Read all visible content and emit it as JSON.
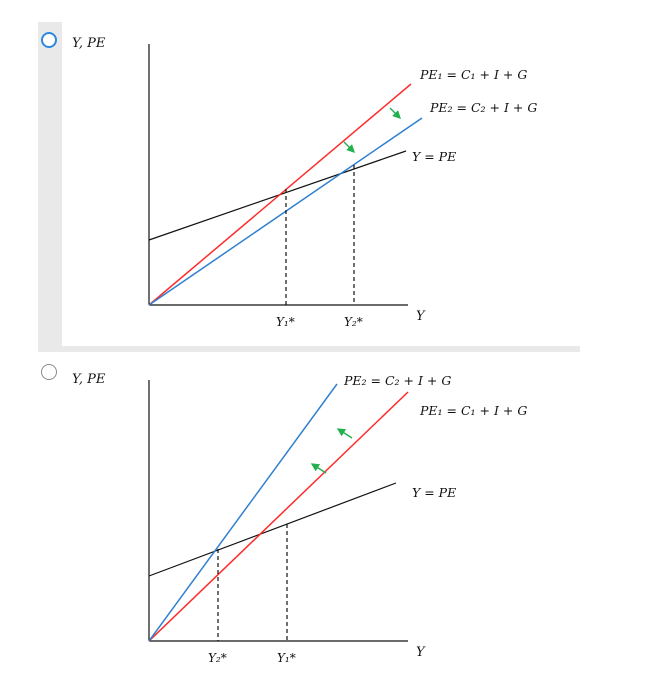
{
  "options": [
    {
      "y_axis_label": "Y, PE",
      "x_axis_label": "Y",
      "curves": [
        {
          "name": "PE₁ = C₁ + I + G",
          "color": "#ff2b2b"
        },
        {
          "name": "PE₂ = C₂ + I + G",
          "color": "#2f80d0"
        },
        {
          "name": "Y = PE",
          "color": "#111111"
        }
      ],
      "x_ticks": [
        "Y₁*",
        "Y₂*"
      ],
      "arrow_color": "#22b14c",
      "selected": true
    },
    {
      "y_axis_label": "Y, PE",
      "x_axis_label": "Y",
      "curves": [
        {
          "name": "PE₂ = C₂ + I + G",
          "color": "#2f80d0"
        },
        {
          "name": "PE₁ = C₁ + I + G",
          "color": "#ff2b2b"
        },
        {
          "name": "Y = PE",
          "color": "#111111"
        }
      ],
      "x_ticks": [
        "Y₂*",
        "Y₁*"
      ],
      "arrow_color": "#22b14c",
      "selected": false
    }
  ]
}
